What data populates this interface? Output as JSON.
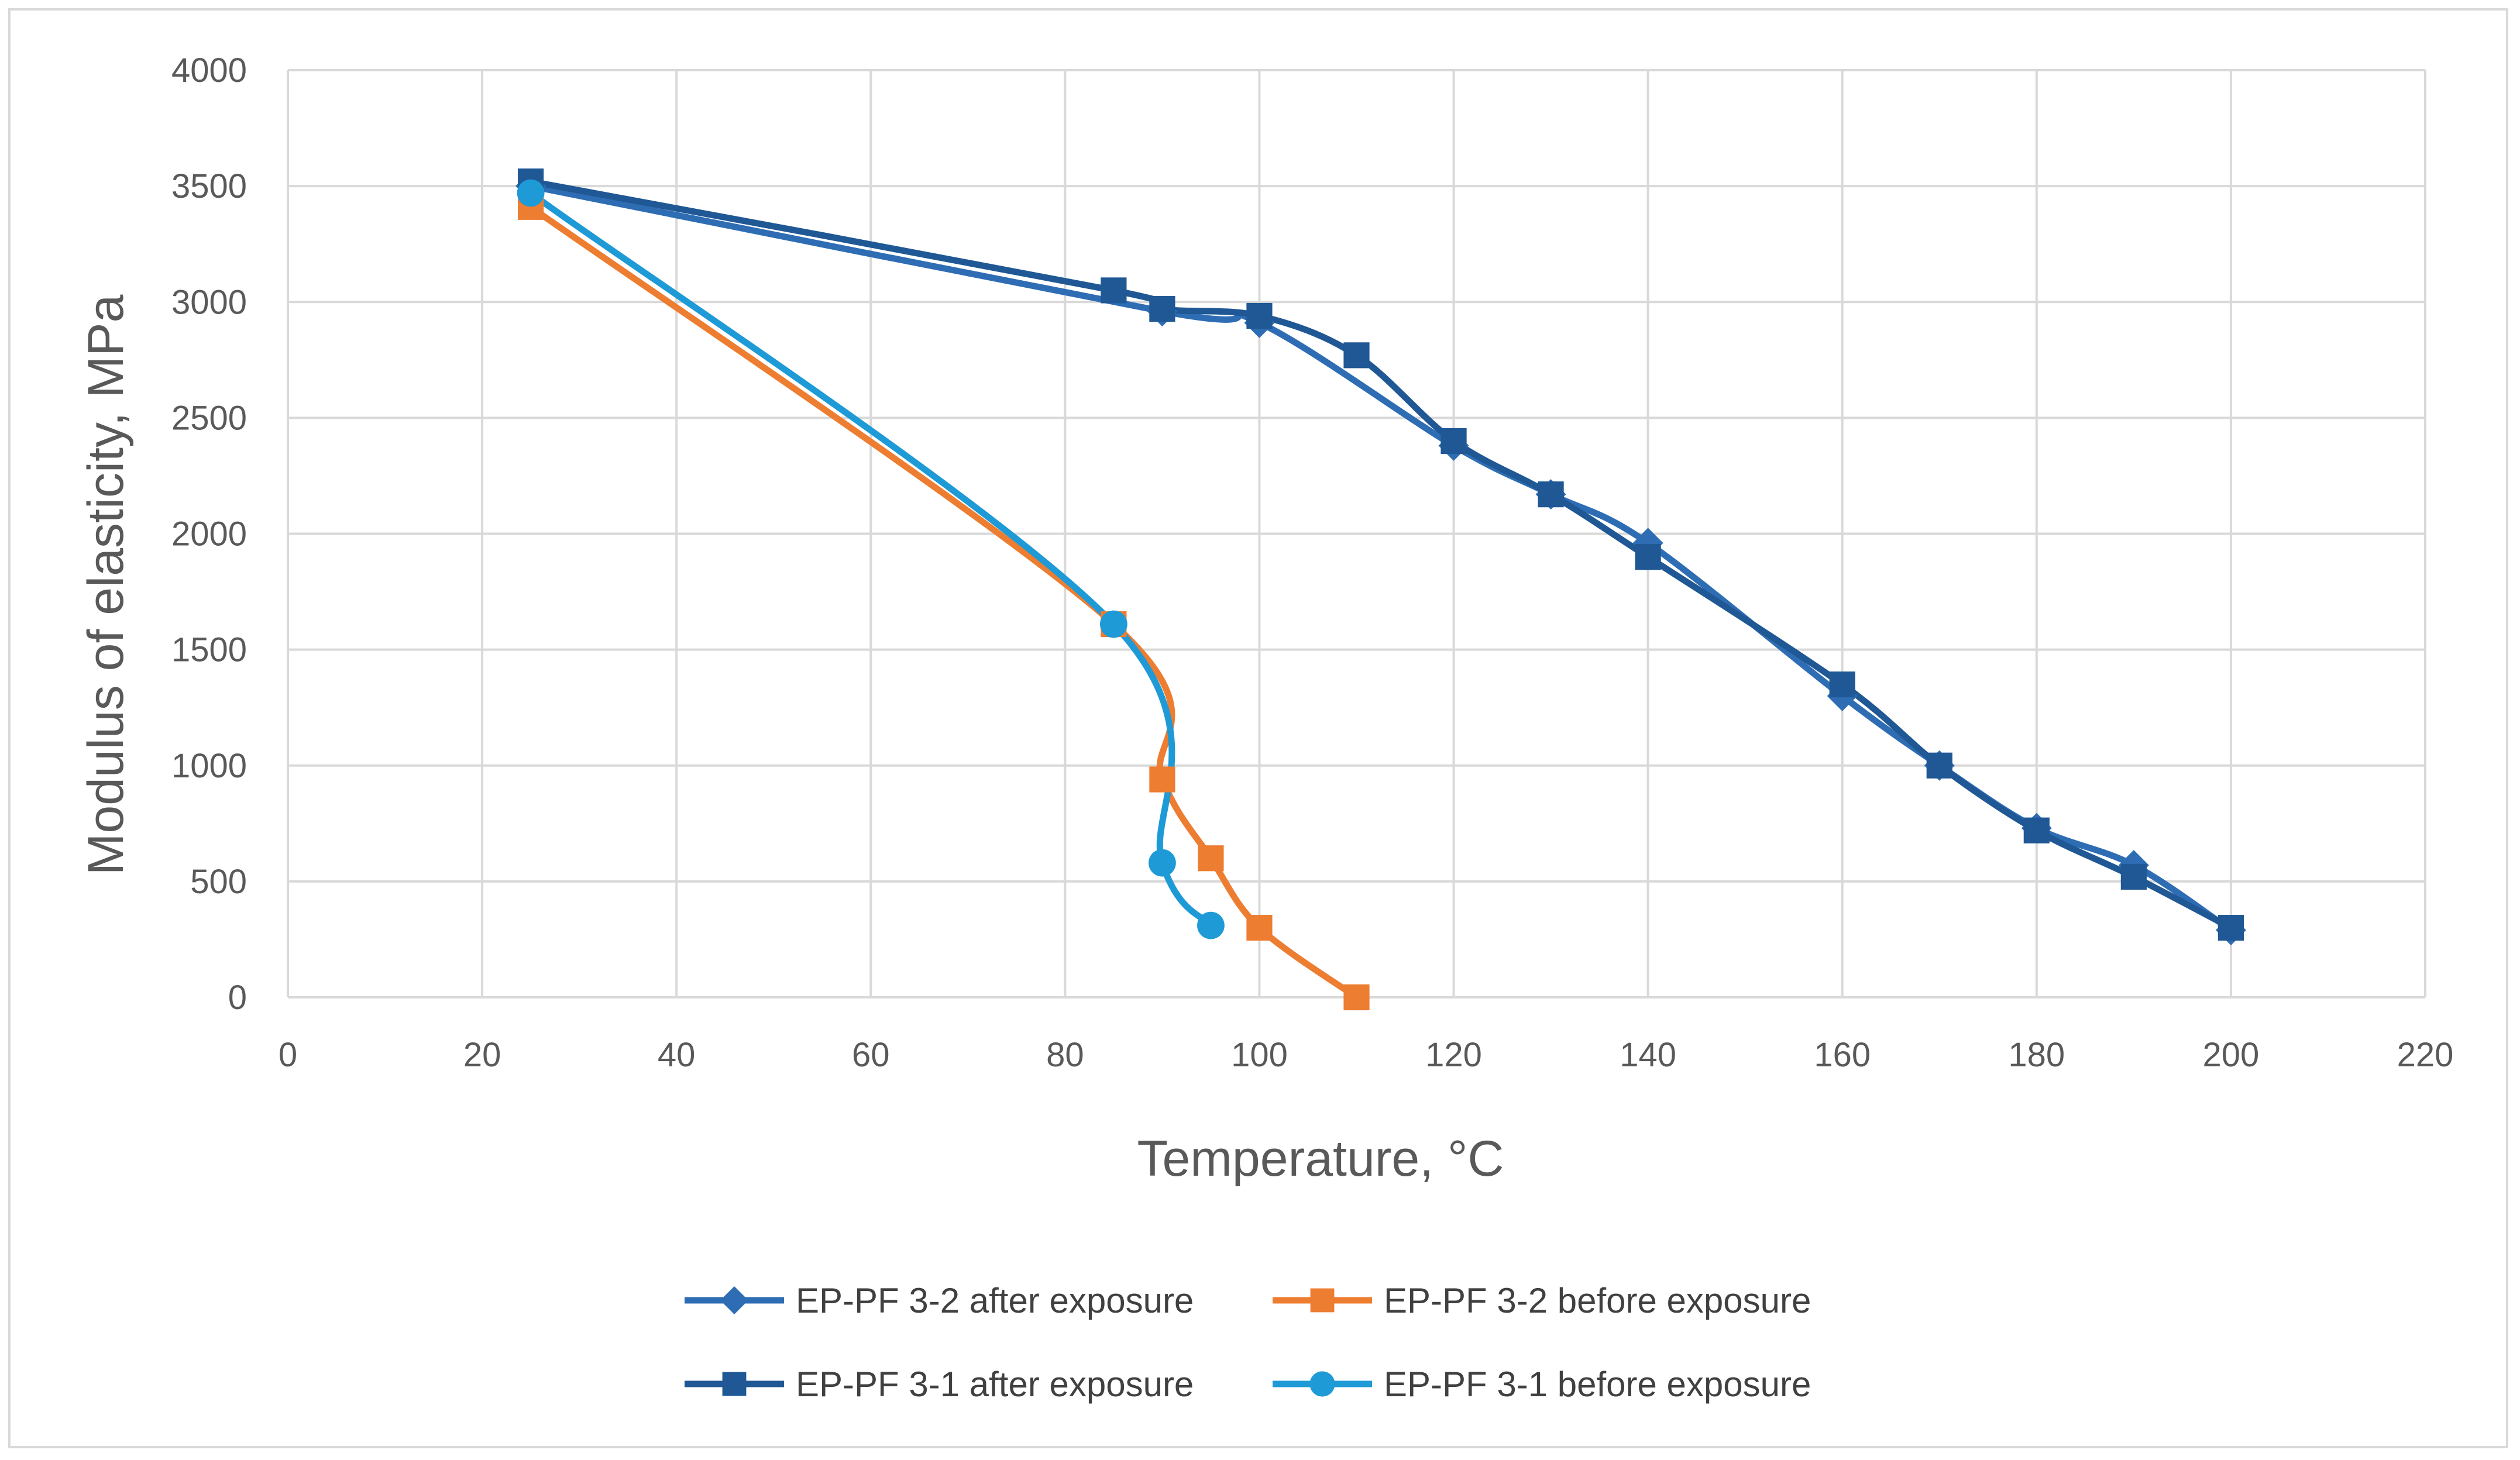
{
  "chart_data": {
    "type": "line",
    "title": "",
    "xlabel": "Temperature, °C",
    "ylabel": "Modulus of elasticity, MPa",
    "xlim": [
      0,
      220
    ],
    "ylim": [
      0,
      4000
    ],
    "xticks": [
      0,
      20,
      40,
      60,
      80,
      100,
      120,
      140,
      160,
      180,
      200,
      220
    ],
    "yticks": [
      0,
      500,
      1000,
      1500,
      2000,
      2500,
      3000,
      3500,
      4000
    ],
    "grid": true,
    "legend_position": "bottom",
    "series": [
      {
        "name": "EP-PF 3-2 after exposure",
        "color": "#2e6db4",
        "marker": "diamond",
        "x": [
          25,
          90,
          100,
          120,
          130,
          140,
          160,
          170,
          180,
          190,
          200
        ],
        "y": [
          3500,
          2960,
          2910,
          2380,
          2170,
          1960,
          1300,
          1000,
          730,
          570,
          290
        ]
      },
      {
        "name": "EP-PF 3-2 before exposure",
        "color": "#ed7d31",
        "marker": "square",
        "x": [
          25,
          85,
          90,
          95,
          100,
          110
        ],
        "y": [
          3410,
          1610,
          940,
          600,
          300,
          0
        ]
      },
      {
        "name": "EP-PF 3-1 after exposure",
        "color": "#1f5894",
        "marker": "square",
        "x": [
          25,
          85,
          90,
          100,
          110,
          120,
          130,
          140,
          160,
          170,
          180,
          190,
          200
        ],
        "y": [
          3520,
          3050,
          2970,
          2940,
          2770,
          2400,
          2170,
          1900,
          1350,
          1000,
          720,
          520,
          300
        ]
      },
      {
        "name": "EP-PF 3-1 before exposure",
        "color": "#1e9ad6",
        "marker": "circle",
        "x": [
          25,
          85,
          90,
          95
        ],
        "y": [
          3470,
          1610,
          580,
          310
        ]
      }
    ]
  }
}
